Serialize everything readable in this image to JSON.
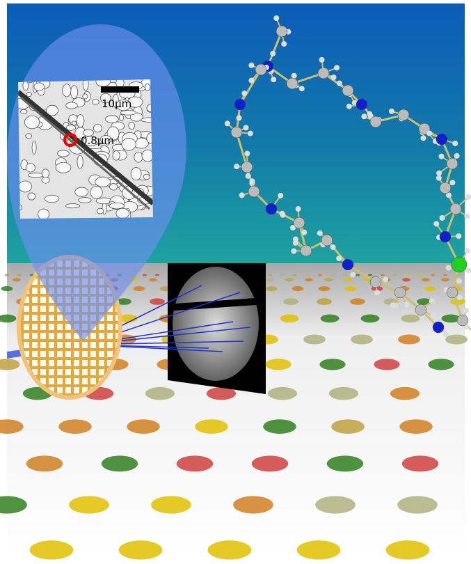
{
  "inset": {
    "scale_bar_label": "10μm",
    "marker_label": "0.8μm"
  }
}
